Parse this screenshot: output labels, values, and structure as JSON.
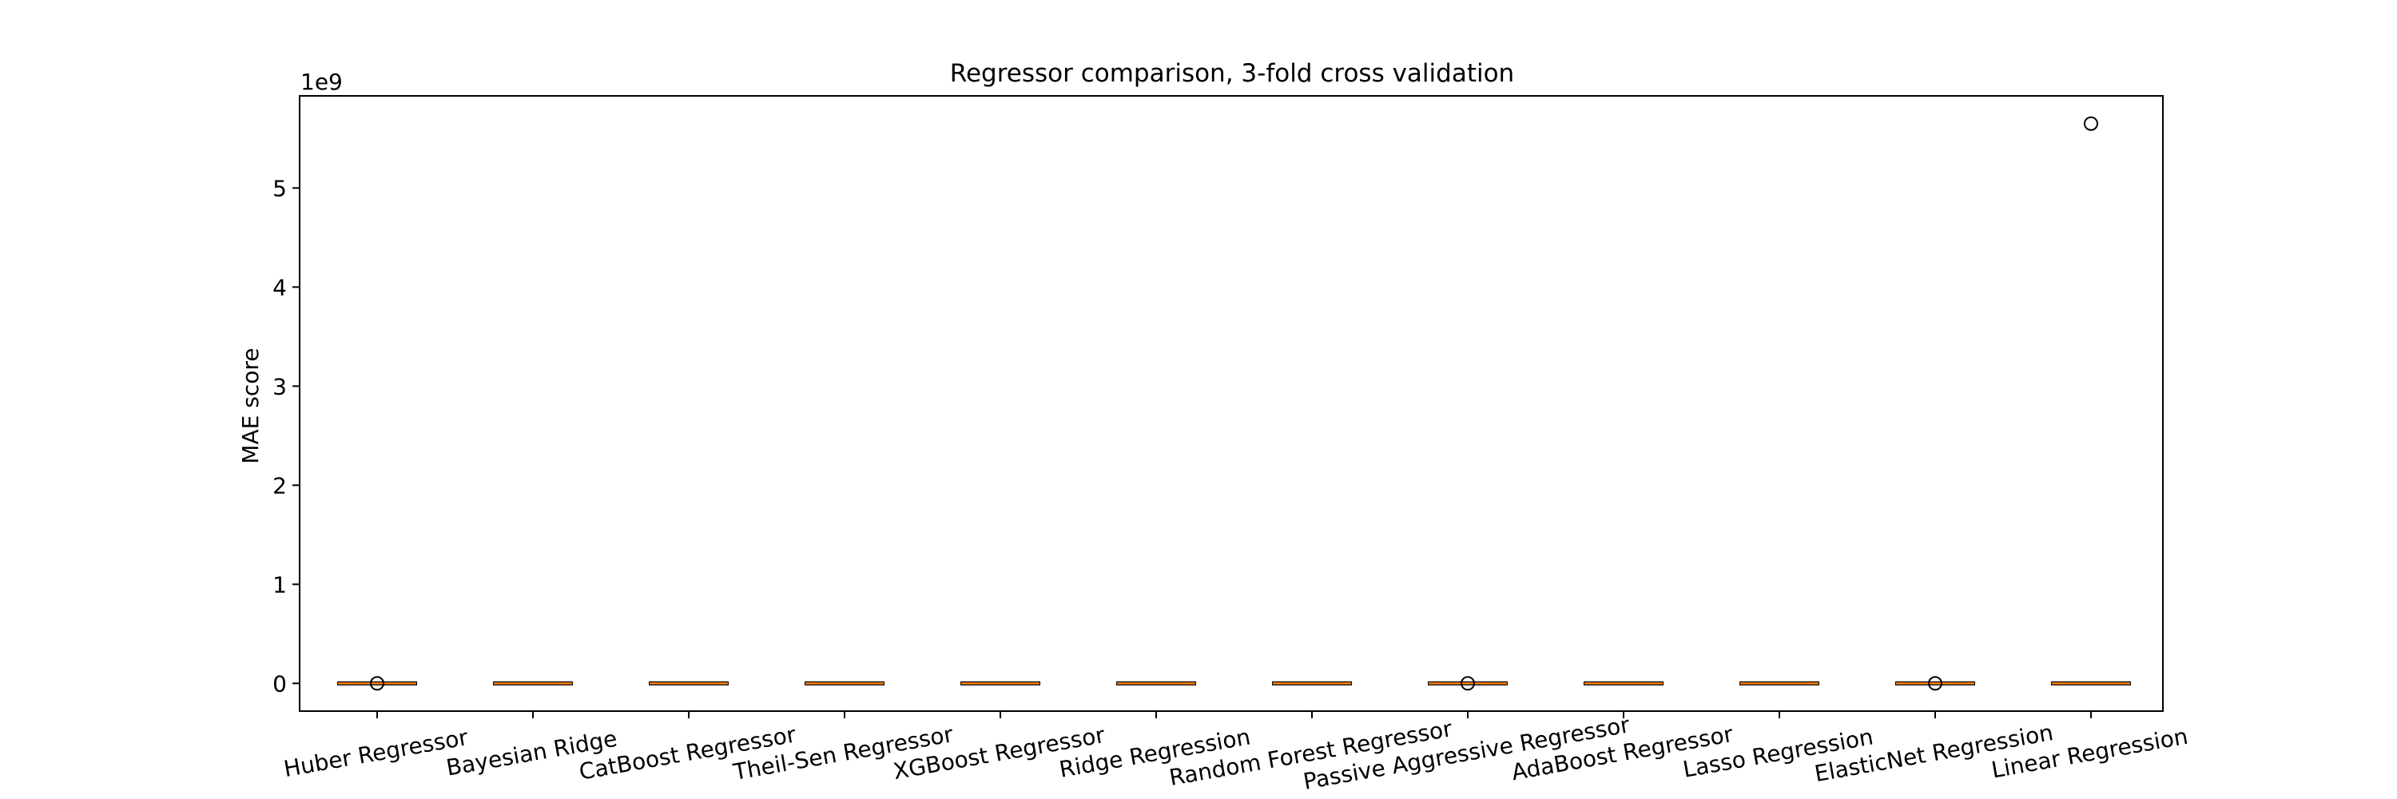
{
  "chart_data": {
    "type": "boxplot",
    "title": "Regressor comparison, 3-fold cross validation",
    "xlabel": "",
    "ylabel": "MAE score",
    "y_scale_label": "1e9",
    "y_unit_multiplier": 1000000000,
    "ylim": [
      -0.28,
      5.93
    ],
    "yticks": [
      0,
      1,
      2,
      3,
      4,
      5
    ],
    "ytick_labels": [
      "0",
      "1",
      "2",
      "3",
      "4",
      "5"
    ],
    "grid": false,
    "x_tick_rotation_deg": -10,
    "categories": [
      "Huber Regressor",
      "Bayesian Ridge",
      "CatBoost Regressor",
      "Theil-Sen Regressor",
      "XGBoost Regressor",
      "Ridge Regression",
      "Random Forest Regressor",
      "Passive Aggressive Regressor",
      "AdaBoost Regressor",
      "Lasso Regression",
      "ElasticNet Regression",
      "Linear Regression"
    ],
    "boxes": [
      {
        "name": "Huber Regressor",
        "median": 0,
        "q1": 0,
        "q3": 0,
        "whisker_low": 0,
        "whisker_high": 0,
        "outliers": [
          0
        ]
      },
      {
        "name": "Bayesian Ridge",
        "median": 0,
        "q1": 0,
        "q3": 0,
        "whisker_low": 0,
        "whisker_high": 0,
        "outliers": []
      },
      {
        "name": "CatBoost Regressor",
        "median": 0,
        "q1": 0,
        "q3": 0,
        "whisker_low": 0,
        "whisker_high": 0,
        "outliers": []
      },
      {
        "name": "Theil-Sen Regressor",
        "median": 0,
        "q1": 0,
        "q3": 0,
        "whisker_low": 0,
        "whisker_high": 0,
        "outliers": []
      },
      {
        "name": "XGBoost Regressor",
        "median": 0,
        "q1": 0,
        "q3": 0,
        "whisker_low": 0,
        "whisker_high": 0,
        "outliers": []
      },
      {
        "name": "Ridge Regression",
        "median": 0,
        "q1": 0,
        "q3": 0,
        "whisker_low": 0,
        "whisker_high": 0,
        "outliers": []
      },
      {
        "name": "Random Forest Regressor",
        "median": 0,
        "q1": 0,
        "q3": 0,
        "whisker_low": 0,
        "whisker_high": 0,
        "outliers": []
      },
      {
        "name": "Passive Aggressive Regressor",
        "median": 0,
        "q1": 0,
        "q3": 0,
        "whisker_low": 0,
        "whisker_high": 0,
        "outliers": [
          0
        ]
      },
      {
        "name": "AdaBoost Regressor",
        "median": 0,
        "q1": 0,
        "q3": 0,
        "whisker_low": 0,
        "whisker_high": 0,
        "outliers": []
      },
      {
        "name": "Lasso Regression",
        "median": 0,
        "q1": 0,
        "q3": 0,
        "whisker_low": 0,
        "whisker_high": 0,
        "outliers": []
      },
      {
        "name": "ElasticNet Regression",
        "median": 0,
        "q1": 0,
        "q3": 0,
        "whisker_low": 0,
        "whisker_high": 0,
        "outliers": [
          0
        ]
      },
      {
        "name": "Linear Regression",
        "median": 0,
        "q1": 0,
        "q3": 0,
        "whisker_low": 0,
        "whisker_high": 0,
        "outliers": [
          5.65
        ]
      }
    ],
    "colors": {
      "median": "#ff7f0e",
      "box": "#000000",
      "frame": "#000000",
      "outlier_edge": "#000000",
      "background": "#ffffff"
    }
  }
}
